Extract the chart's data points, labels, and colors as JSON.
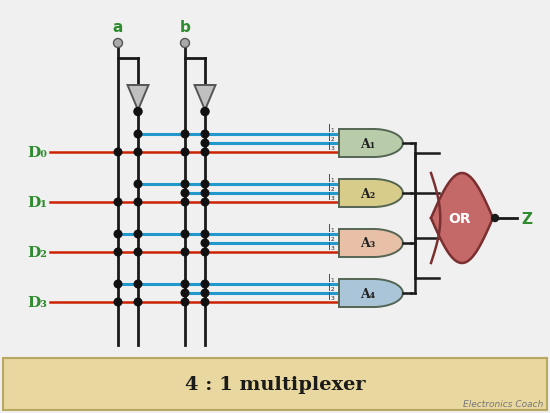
{
  "bg_color": "#f0f0f0",
  "title_box_color": "#e8d8a0",
  "title_border_color": "#b8a860",
  "title_text": "4 : 1 multiplexer",
  "title_color": "#1a1a1a",
  "watermark": "Electronics Coach",
  "label_a": "a",
  "label_b": "b",
  "label_z": "Z",
  "input_labels": [
    "D₀",
    "D₁",
    "D₂",
    "D₃"
  ],
  "and_labels": [
    "A₁",
    "A₂",
    "A₃",
    "A₄"
  ],
  "green": "#2e8b2e",
  "line_black": "#1a1a1a",
  "line_red": "#cc2200",
  "line_blue": "#2299cc",
  "and_colors": [
    "#b8ccaa",
    "#d8cc8a",
    "#e8c0a8",
    "#aac4d8"
  ],
  "and_edge": "#556655",
  "or_color": "#c46868",
  "or_edge": "#7a3030",
  "dot_color": "#111111",
  "not_fill": "#c0c0c0",
  "not_edge": "#555555",
  "pin_fill": "#aaaaaa",
  "pin_edge": "#555555",
  "label_color": "#444444"
}
